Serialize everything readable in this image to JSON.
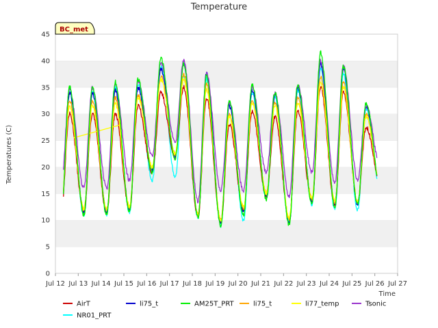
{
  "chart_data": {
    "type": "line",
    "title": "Temperature",
    "xlabel": "Time",
    "ylabel": "Temperatures (C)",
    "badge": "BC_met",
    "ylim": [
      0,
      45
    ],
    "yticks": [
      0,
      5,
      10,
      15,
      20,
      25,
      30,
      35,
      40,
      45
    ],
    "xlim": [
      12,
      27
    ],
    "xticks": [
      {
        "v": 12,
        "label": "Jul 12"
      },
      {
        "v": 13,
        "label": "Jul 13"
      },
      {
        "v": 14,
        "label": "Jul 14"
      },
      {
        "v": 15,
        "label": "Jul 15"
      },
      {
        "v": 16,
        "label": "Jul 16"
      },
      {
        "v": 17,
        "label": "Jul 17"
      },
      {
        "v": 18,
        "label": "Jul 18"
      },
      {
        "v": 19,
        "label": "Jul 19"
      },
      {
        "v": 20,
        "label": "Jul 20"
      },
      {
        "v": 21,
        "label": "Jul 21"
      },
      {
        "v": 22,
        "label": "Jul 22"
      },
      {
        "v": 23,
        "label": "Jul 23"
      },
      {
        "v": 24,
        "label": "Jul 24"
      },
      {
        "v": 25,
        "label": "Jul 25"
      },
      {
        "v": 26,
        "label": "Jul 26"
      },
      {
        "v": 27,
        "label": "Jul 27"
      }
    ],
    "grid": "horizontal bands",
    "legend_position": "bottom",
    "daily_extremes": {
      "days": [
        12,
        13,
        14,
        15,
        16,
        17,
        18,
        19,
        20,
        21,
        22,
        23,
        24,
        25,
        26
      ],
      "min_time_of_day": 0.25,
      "max_time_of_day": 0.62,
      "start_value": 15.0,
      "end_value": 16.5
    },
    "series": [
      {
        "name": "AirT",
        "color": "#cc0000",
        "mins": [
          11.5,
          11.5,
          11.5,
          12.0,
          19.0,
          22.0,
          10.5,
          9.5,
          12.0,
          14.5,
          10.0,
          13.5,
          13.0,
          13.5,
          16.5
        ],
        "maxs": [
          30.0,
          30.0,
          30.0,
          31.5,
          34.0,
          35.0,
          33.0,
          28.0,
          30.5,
          29.5,
          30.5,
          35.0,
          34.0,
          27.5,
          29.0
        ]
      },
      {
        "name": "li75_t",
        "color": "#0000cc",
        "mins": [
          11.5,
          11.5,
          11.5,
          12.0,
          19.5,
          22.0,
          10.5,
          9.5,
          11.5,
          14.5,
          9.5,
          13.5,
          13.0,
          13.0,
          16.0
        ],
        "maxs": [
          34.0,
          34.0,
          34.5,
          35.0,
          38.5,
          39.5,
          37.5,
          31.5,
          34.5,
          33.5,
          35.0,
          39.5,
          38.5,
          31.5,
          33.5
        ]
      },
      {
        "name": "AM25T_PRT",
        "color": "#00ee00",
        "mins": [
          11.0,
          11.0,
          11.0,
          11.5,
          19.0,
          21.5,
          10.5,
          9.0,
          11.0,
          14.0,
          9.0,
          13.0,
          12.5,
          13.0,
          16.0
        ],
        "maxs": [
          35.0,
          35.0,
          36.0,
          36.5,
          40.5,
          39.5,
          37.0,
          32.5,
          35.5,
          34.0,
          35.5,
          41.5,
          39.0,
          32.0,
          34.5
        ]
      },
      {
        "name": "li75_t",
        "color": "#ffa500",
        "mins": [
          12.0,
          12.0,
          12.0,
          12.5,
          20.0,
          22.5,
          11.0,
          10.0,
          12.0,
          15.0,
          10.0,
          14.0,
          13.5,
          13.5,
          16.5
        ],
        "maxs": [
          32.5,
          32.5,
          33.0,
          33.5,
          37.0,
          37.5,
          35.5,
          30.0,
          32.5,
          32.0,
          33.0,
          37.0,
          36.0,
          30.0,
          31.5
        ]
      },
      {
        "name": "li77_temp",
        "color": "#ffff00",
        "mins": [
          12.0,
          12.0,
          12.0,
          12.5,
          20.0,
          22.5,
          11.0,
          10.0,
          12.5,
          15.0,
          10.5,
          14.0,
          13.5,
          13.5,
          16.5
        ],
        "maxs": [
          31.5,
          31.5,
          32.0,
          33.0,
          36.5,
          36.5,
          34.5,
          29.5,
          32.0,
          31.5,
          32.0,
          36.0,
          35.0,
          29.5,
          31.0
        ],
        "gap_line": {
          "x": [
            12.8,
            14.9
          ],
          "y": [
            25.5,
            28.0
          ]
        }
      },
      {
        "name": "Tsonic",
        "color": "#9933cc",
        "mins": [
          16.5,
          16.0,
          16.0,
          17.5,
          22.0,
          24.5,
          13.5,
          15.5,
          15.5,
          19.0,
          14.5,
          19.0,
          17.0,
          17.5,
          20.0
        ],
        "maxs": [
          34.5,
          35.0,
          35.5,
          36.0,
          39.5,
          40.0,
          37.5,
          32.0,
          35.0,
          34.0,
          35.5,
          40.0,
          39.0,
          31.5,
          33.5
        ],
        "start_value": 19.0,
        "end_value": 20.0
      },
      {
        "name": "NR01_PRT",
        "color": "#00ffff",
        "mins": [
          11.0,
          10.8,
          11.0,
          11.5,
          17.5,
          18.0,
          10.5,
          9.0,
          10.0,
          14.0,
          9.5,
          13.0,
          12.0,
          12.0,
          15.5
        ],
        "maxs": [
          34.0,
          34.0,
          35.0,
          35.5,
          39.0,
          37.0,
          36.5,
          32.0,
          34.0,
          33.0,
          34.5,
          38.5,
          37.5,
          31.0,
          32.5
        ]
      }
    ],
    "legend_order": [
      [
        0,
        1,
        2,
        3,
        4,
        5
      ],
      [
        6
      ]
    ]
  }
}
